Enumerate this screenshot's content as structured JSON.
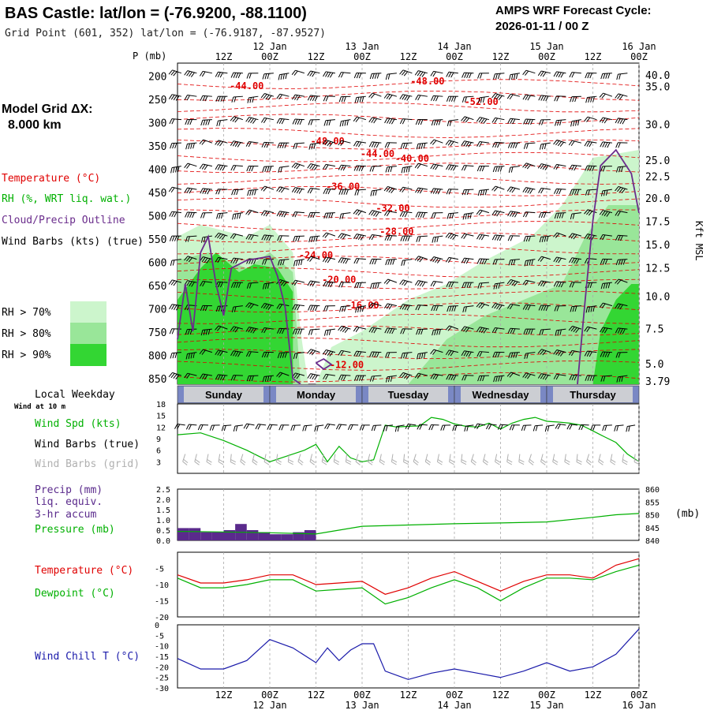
{
  "header": {
    "title": "BAS Castle:  lat/lon = (-76.9200, -88.1100)",
    "grid_point": "Grid Point (601, 352) lat/lon = (-76.9187, -87.9527)",
    "cycle_line1": "AMPS WRF Forecast Cycle:",
    "cycle_line2": "2026-01-11 / 00  Z"
  },
  "labels": {
    "p_axis": "P (mb)",
    "model_grid_1": "Model Grid ΔX:",
    "model_grid_2": "8.000 km",
    "temperature": "Temperature (°C)",
    "rh": "RH (%, WRT liq. wat.)",
    "cloud": "Cloud/Precip Outline",
    "wind_barbs": "Wind Barbs (kts) (true)",
    "rh70": "RH > 70%",
    "rh80": "RH > 80%",
    "rh90": "RH > 90%",
    "kft": "Kft MSL",
    "local_weekday": "Local Weekday",
    "wind_10m": "Wind at 10 m",
    "wind_spd": "Wind Spd (kts)",
    "wind_barbs_true": "Wind Barbs (true)",
    "wind_barbs_grid": "Wind Barbs (grid)",
    "precip_1": "Precip (mm)",
    "precip_2": "liq. equiv.",
    "precip_3": "3-hr accum",
    "pressure": "Pressure (mb)",
    "mb": "(mb)",
    "temp": "Temperature (°C)",
    "dewpoint": "Dewpoint (°C)",
    "windchill": "Wind Chill T (°C)"
  },
  "colors": {
    "temp": "#e00000",
    "rh_light": "#ccf5cc",
    "rh_mid": "#99e699",
    "rh_dark": "#33d633",
    "cloud": "#6a2c8c",
    "green": "#00b000",
    "blue": "#1a1aaa",
    "gray_barb": "#b0b0b0",
    "precip_bar": "#5a2a8c"
  },
  "time_axis": {
    "top_hours": [
      "12Z",
      "00Z",
      "12Z",
      "00Z",
      "12Z",
      "00Z",
      "12Z",
      "00Z",
      "12Z",
      "00Z"
    ],
    "dates": [
      "12 Jan",
      "13 Jan",
      "14 Jan",
      "15 Jan",
      "16 Jan"
    ],
    "weekdays": [
      "Sunday",
      "Monday",
      "Tuesday",
      "Wednesday",
      "Thursday"
    ],
    "tick_hours": [
      12,
      24,
      36,
      48,
      60,
      72,
      84,
      96,
      108,
      120
    ]
  },
  "chart_data": [
    {
      "type": "heatmap",
      "name": "cross-section",
      "xlim": [
        0,
        120
      ],
      "pressure_levels": [
        200,
        250,
        300,
        350,
        400,
        450,
        500,
        550,
        600,
        650,
        700,
        750,
        800,
        850
      ],
      "height_kft": [
        "40.0",
        "35.0",
        "30.0",
        "25.0",
        "22.5",
        "20.0",
        "17.5",
        "15.0",
        "12.5",
        "10.0",
        "7.5",
        "5.0",
        "3.79"
      ],
      "height_pressures": [
        197,
        222,
        303,
        380,
        415,
        462,
        512,
        562,
        612,
        673,
        742,
        818,
        855
      ],
      "temperature_labels": [
        {
          "text": "-44.00",
          "hour": 18,
          "p": 226
        },
        {
          "text": "-48.00",
          "hour": 65,
          "p": 216
        },
        {
          "text": "-52.00",
          "hour": 79,
          "p": 260
        },
        {
          "text": "-48.00",
          "hour": 39,
          "p": 345
        },
        {
          "text": "-44.00",
          "hour": 52,
          "p": 372
        },
        {
          "text": "-40.00",
          "hour": 61,
          "p": 382
        },
        {
          "text": "-36.00",
          "hour": 43,
          "p": 442
        },
        {
          "text": "-32.00",
          "hour": 56,
          "p": 489
        },
        {
          "text": "-28.00",
          "hour": 57,
          "p": 539
        },
        {
          "text": "-24.00",
          "hour": 36,
          "p": 590
        },
        {
          "text": "-20.00",
          "hour": 42,
          "p": 642
        },
        {
          "text": "-16.00",
          "hour": 48,
          "p": 697
        },
        {
          "text": "-12.00",
          "hour": 44,
          "p": 825
        }
      ]
    },
    {
      "type": "line",
      "name": "wind-speed",
      "ylim": [
        0,
        18
      ],
      "yticks": [
        3,
        6,
        9,
        12,
        15,
        18
      ],
      "x": [
        0,
        6,
        12,
        18,
        24,
        30,
        33,
        36,
        39,
        42,
        45,
        48,
        51,
        54,
        57,
        60,
        63,
        66,
        69,
        72,
        75,
        78,
        81,
        84,
        87,
        90,
        93,
        96,
        99,
        102,
        105,
        108,
        111,
        114,
        117,
        120
      ],
      "series": [
        {
          "values": [
            10,
            10.5,
            8.5,
            6,
            3,
            5,
            6,
            7.5,
            3,
            7,
            4,
            3,
            3.5,
            12.5,
            12,
            12.2,
            12.3,
            14.5,
            14,
            12.8,
            12.2,
            12,
            13,
            11.5,
            13,
            14,
            14.5,
            13.5,
            13.3,
            13,
            12.5,
            11,
            9.5,
            8,
            5,
            3
          ]
        }
      ]
    },
    {
      "type": "bar",
      "name": "precip-pressure",
      "ylim": [
        0,
        2.5
      ],
      "yticks": [
        0.0,
        0.5,
        1.0,
        1.5,
        2.0,
        2.5
      ],
      "precip_hours": [
        0,
        3,
        6,
        9,
        12,
        15,
        18,
        21,
        24,
        27,
        30,
        33,
        36,
        39
      ],
      "precip_values": [
        0.6,
        0.6,
        0.4,
        0.4,
        0.5,
        0.8,
        0.5,
        0.4,
        0.3,
        0.3,
        0.4,
        0.5,
        0.0,
        0.0
      ],
      "pressure_ylim": [
        840,
        860
      ],
      "pressure_yticks": [
        840,
        845,
        850,
        855,
        860
      ],
      "pressure": {
        "x": [
          0,
          12,
          24,
          36,
          48,
          60,
          72,
          84,
          96,
          108,
          114,
          120
        ],
        "values": [
          843.5,
          843.3,
          843,
          842.5,
          845.5,
          846,
          846.5,
          846.8,
          847.2,
          849,
          850,
          850.5
        ]
      }
    },
    {
      "type": "line",
      "name": "temperature-dewpoint",
      "ylim": [
        -20,
        0
      ],
      "yticks": [
        -20,
        -15,
        -10,
        -5
      ],
      "x": [
        0,
        6,
        12,
        18,
        24,
        30,
        36,
        42,
        48,
        54,
        60,
        66,
        72,
        78,
        84,
        90,
        96,
        102,
        108,
        114,
        120
      ],
      "series": [
        {
          "values": [
            -7,
            -9.5,
            -9.5,
            -8.5,
            -7,
            -7,
            -10,
            -9.5,
            -9,
            -13,
            -11,
            -8,
            -6,
            -9,
            -12,
            -9,
            -7,
            -7,
            -8,
            -4,
            -2
          ]
        },
        {
          "values": [
            -8,
            -11,
            -11,
            -10,
            -8.5,
            -8.5,
            -12,
            -11.5,
            -11,
            -16,
            -14,
            -11,
            -8.5,
            -11,
            -15,
            -11,
            -8,
            -8,
            -8.5,
            -6,
            -4
          ]
        }
      ]
    },
    {
      "type": "line",
      "name": "wind-chill",
      "ylim": [
        -30,
        0
      ],
      "yticks": [
        -30,
        -25,
        -20,
        -15,
        -10,
        -5,
        0
      ],
      "x": [
        0,
        6,
        12,
        18,
        24,
        30,
        36,
        39,
        42,
        45,
        48,
        51,
        54,
        60,
        66,
        72,
        78,
        84,
        90,
        96,
        102,
        108,
        114,
        120
      ],
      "series": [
        {
          "values": [
            -16,
            -21,
            -21,
            -17,
            -7,
            -11,
            -18,
            -11,
            -17,
            -12,
            -9,
            -9,
            -22,
            -26,
            -23,
            -21,
            -23,
            -25,
            -22,
            -18,
            -22,
            -20,
            -14,
            -2
          ]
        }
      ]
    }
  ]
}
